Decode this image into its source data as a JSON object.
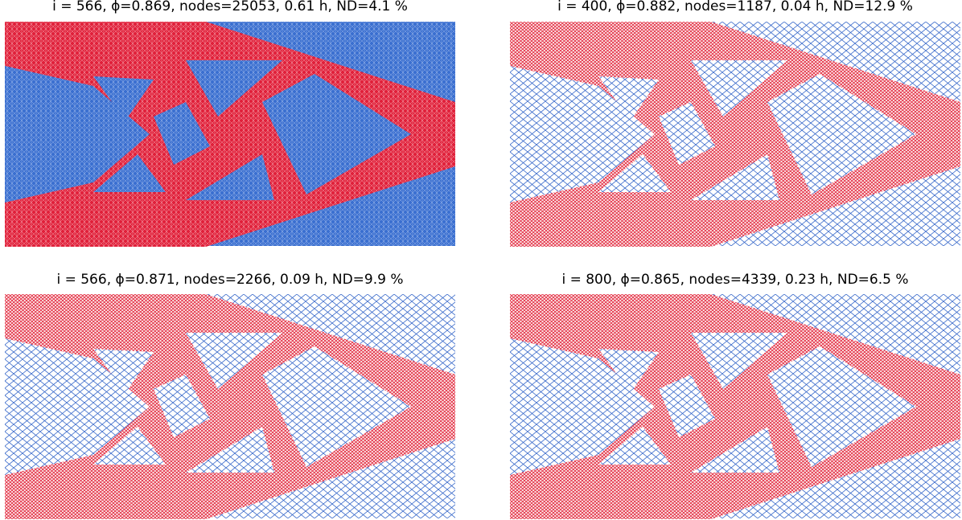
{
  "panels": [
    {
      "title": "i = 566, ϕ=0.869, nodes=25053, 0.61 h, ND=4.1 %"
    },
    {
      "title": "i = 400, ϕ=0.882, nodes=1187, 0.04 h, ND=12.9 %"
    },
    {
      "title": "i = 566, ϕ=0.871, nodes=2266, 0.09 h, ND=9.9 %"
    },
    {
      "title": "i = 800, ϕ=0.865, nodes=4339, 0.23 h, ND=6.5 %"
    }
  ]
}
